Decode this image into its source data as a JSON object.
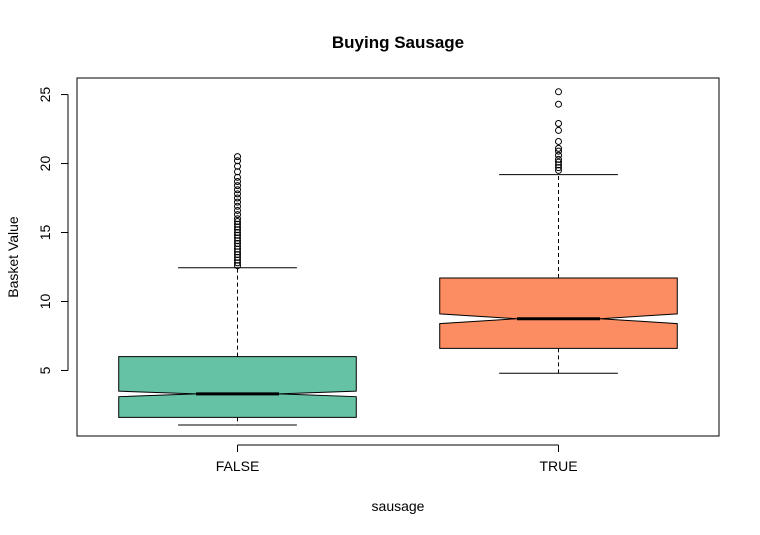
{
  "chart_data": {
    "type": "box",
    "title": "Buying Sausage",
    "xlabel": "sausage",
    "ylabel": "Basket Value",
    "categories": [
      "FALSE",
      "TRUE"
    ],
    "yticks": [
      "5",
      "10",
      "15",
      "20",
      "25"
    ],
    "ylim": [
      0.25,
      26.2
    ],
    "notched": true,
    "grid": false,
    "boxes": [
      {
        "category": "FALSE",
        "color": "#66C2A5",
        "whisker_low": 1.05,
        "q1": 1.6,
        "median": 3.3,
        "q3": 6.0,
        "whisker_high": 12.45,
        "notch_low": 3.1,
        "notch_high": 3.5,
        "outliers": [
          12.6,
          12.8,
          13.0,
          13.2,
          13.4,
          13.6,
          13.8,
          14.0,
          14.2,
          14.4,
          14.6,
          14.8,
          15.0,
          15.2,
          15.4,
          15.6,
          15.8,
          16.0,
          16.3,
          16.6,
          16.9,
          17.2,
          17.5,
          17.8,
          18.1,
          18.4,
          18.7,
          19.0,
          19.4,
          19.8,
          20.2,
          20.5
        ]
      },
      {
        "category": "TRUE",
        "color": "#FC8D62",
        "whisker_low": 4.8,
        "q1": 6.6,
        "median": 8.75,
        "q3": 11.7,
        "whisker_high": 19.2,
        "notch_low": 8.4,
        "notch_high": 9.1,
        "outliers": [
          19.5,
          19.7,
          19.9,
          20.1,
          20.3,
          20.6,
          20.9,
          21.1,
          21.6,
          22.4,
          22.9,
          24.3,
          25.2
        ]
      }
    ]
  }
}
